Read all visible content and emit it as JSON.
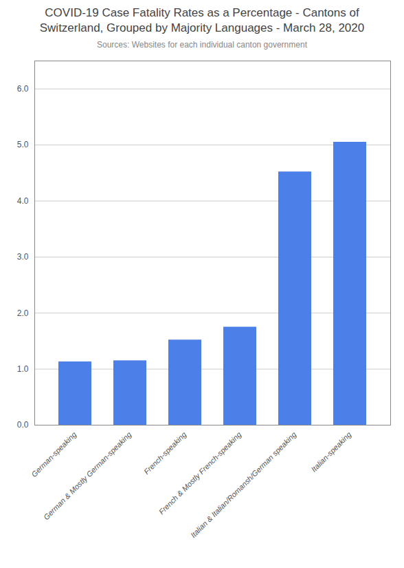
{
  "chart_data": {
    "type": "bar",
    "title": "COVID-19 Case Fatality Rates as a Percentage - Cantons of\nSwitzerland, Grouped by Majority Languages - March 28, 2020",
    "subtitle": "Sources: Websites for each individual canton government",
    "categories": [
      "German-speaking",
      "German & Mostly German-speaking",
      "French-speaking",
      "French & Mostly French-speaking",
      "Italian & Italian/Romansh/German speaking",
      "Italian-speaking"
    ],
    "values": [
      1.13,
      1.15,
      1.52,
      1.75,
      4.52,
      5.05
    ],
    "color": "#4d7fe8",
    "ylim": [
      0,
      6.5
    ],
    "yticks": [
      0,
      1,
      2,
      3,
      4,
      5,
      6
    ],
    "grid": true
  }
}
